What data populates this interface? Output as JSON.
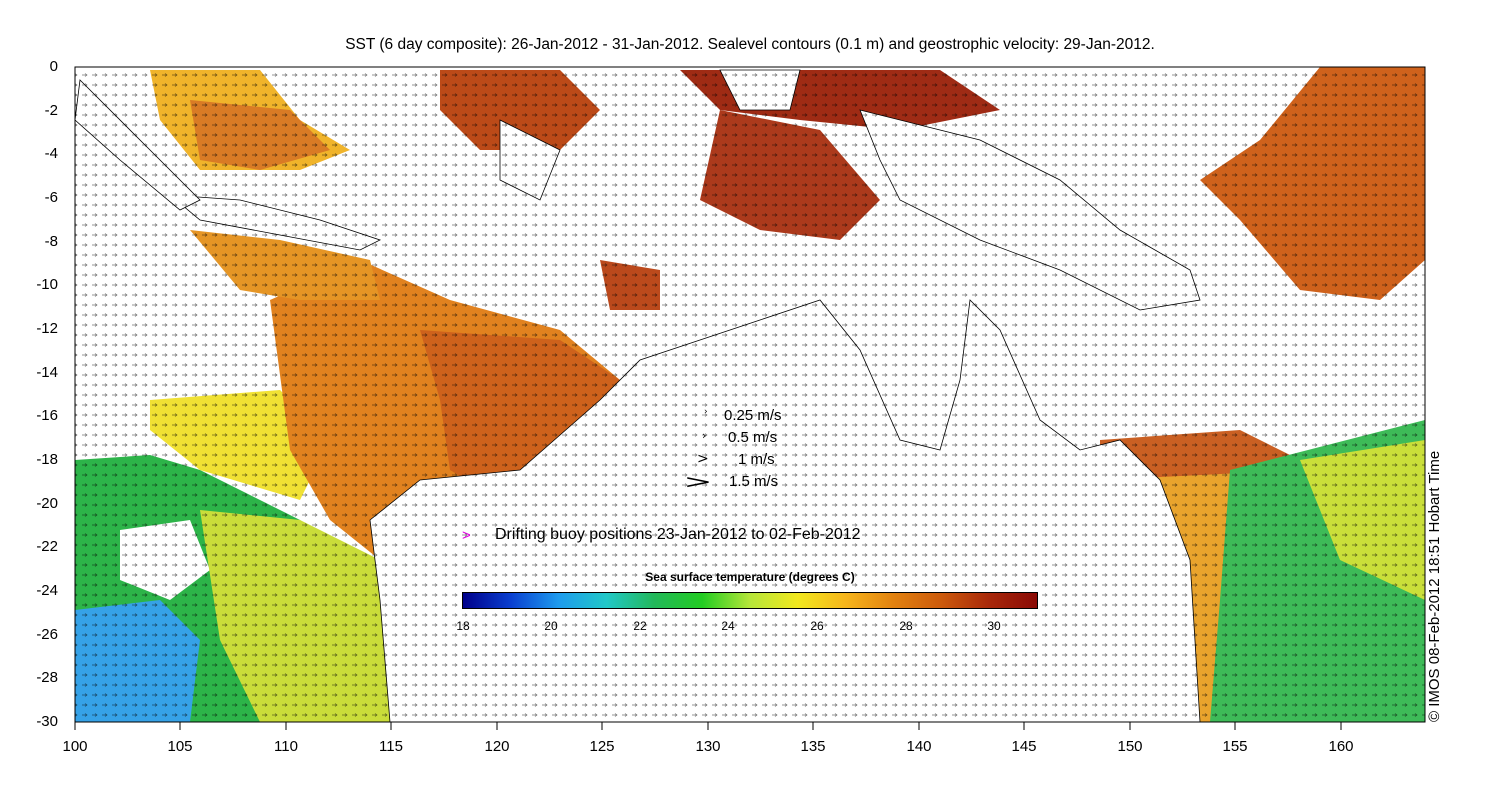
{
  "title": "SST (6 day composite): 26-Jan-2012 - 31-Jan-2012. Sealevel contours (0.1 m) and geostrophic velocity: 29-Jan-2012.",
  "axes": {
    "x_ticks": [
      "100",
      "105",
      "110",
      "115",
      "120",
      "125",
      "130",
      "135",
      "140",
      "145",
      "150",
      "155",
      "160"
    ],
    "y_ticks": [
      "0",
      "-2",
      "-4",
      "-6",
      "-8",
      "-10",
      "-12",
      "-14",
      "-16",
      "-18",
      "-20",
      "-22",
      "-24",
      "-26",
      "-28",
      "-30"
    ],
    "lon_range": [
      100,
      164
    ],
    "lat_range": [
      -30,
      0
    ]
  },
  "velocity_legend": [
    {
      "glyph": "›",
      "label": "0.25 m/s"
    },
    {
      "glyph": "›",
      "label": "0.5 m/s"
    },
    {
      "glyph": ">",
      "label": "1 m/s"
    },
    {
      "glyph": ">",
      "label": "1.5 m/s"
    }
  ],
  "buoy_legend": {
    "glyph": ">",
    "label": "Drifting buoy positions 23-Jan-2012 to 02-Feb-2012",
    "color": "#e000e0"
  },
  "colorbar": {
    "title": "Sea surface temperature (degrees C)",
    "ticks": [
      "18",
      "20",
      "22",
      "24",
      "26",
      "28",
      "30"
    ],
    "range": [
      18,
      31
    ],
    "colors": [
      "#00008a",
      "#0a3fd0",
      "#1e9bee",
      "#21c8c8",
      "#22b85a",
      "#22cc22",
      "#b6e63a",
      "#f2e81e",
      "#f6b51c",
      "#e28210",
      "#cc5a0c",
      "#a8280a",
      "#8a0a06"
    ]
  },
  "credit": "© IMOS 08-Feb-2012 18:51 Hobart Time"
}
